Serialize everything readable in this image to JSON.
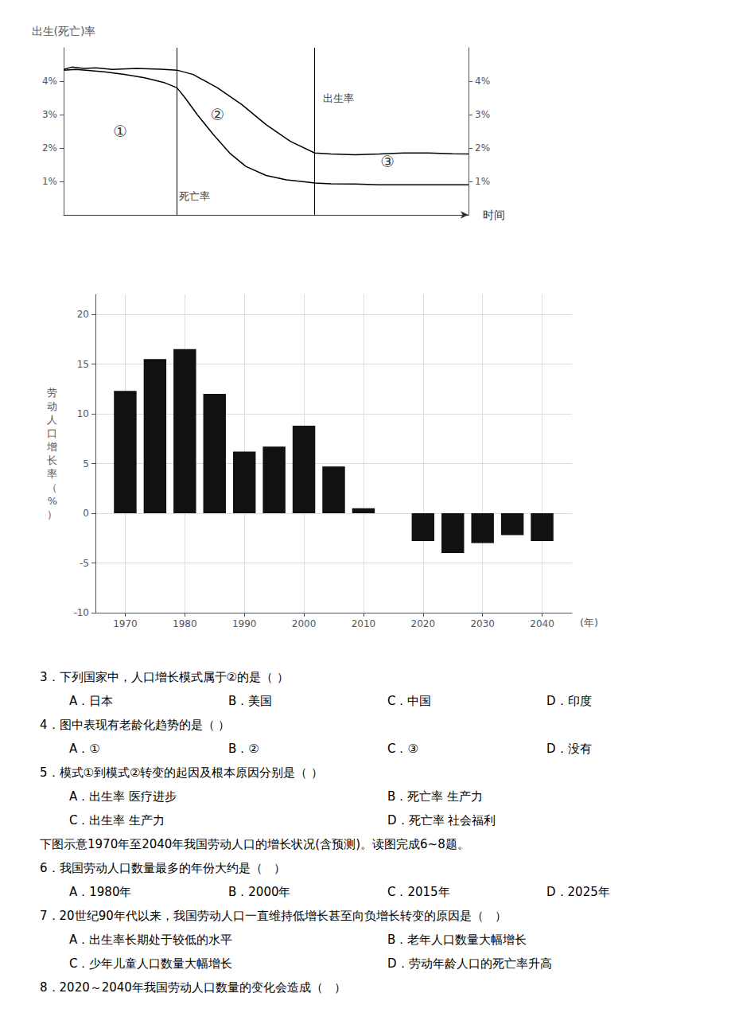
{
  "chart_data": [
    {
      "type": "line",
      "ylabel": "出生(死亡)率",
      "xlabel": "时间",
      "xlim": [
        0,
        10
      ],
      "ylim": [
        0,
        5.0
      ],
      "yticks": [
        {
          "value": 1,
          "label": "1%"
        },
        {
          "value": 2,
          "label": "2%"
        },
        {
          "value": 3,
          "label": "3%"
        },
        {
          "value": 4,
          "label": "4%"
        }
      ],
      "y2lim": [
        0,
        5.0
      ],
      "y2ticks": [
        {
          "value": 1,
          "label": "1%"
        },
        {
          "value": 2,
          "label": "2%"
        },
        {
          "value": 3,
          "label": "3%"
        },
        {
          "value": 4,
          "label": "4%"
        }
      ],
      "tick_labels": "y",
      "grid": false,
      "series": [
        {
          "color": "#000000",
          "x": [
            0,
            0.2,
            0.5,
            0.8,
            1.2,
            1.8,
            2.4,
            2.8,
            3.2,
            3.8,
            4.4,
            5.0,
            5.6,
            6.2,
            6.6,
            7.2,
            7.8,
            8.4,
            9.0,
            9.6,
            10.0
          ],
          "values": [
            4.35,
            4.42,
            4.38,
            4.4,
            4.35,
            4.38,
            4.36,
            4.33,
            4.2,
            3.8,
            3.3,
            2.7,
            2.2,
            1.85,
            1.82,
            1.8,
            1.82,
            1.85,
            1.85,
            1.83,
            1.82
          ]
        },
        {
          "color": "#000000",
          "x": [
            0,
            0.3,
            0.6,
            1.0,
            1.5,
            2.0,
            2.5,
            2.8,
            3.0,
            3.3,
            3.7,
            4.1,
            4.5,
            5.0,
            5.5,
            6.0,
            6.2,
            6.6,
            7.2,
            7.8,
            8.5,
            9.2,
            10.0
          ],
          "values": [
            4.33,
            4.35,
            4.32,
            4.28,
            4.2,
            4.1,
            3.95,
            3.8,
            3.5,
            3.0,
            2.4,
            1.85,
            1.45,
            1.18,
            1.05,
            0.98,
            0.95,
            0.93,
            0.92,
            0.9,
            0.9,
            0.9,
            0.9
          ]
        }
      ],
      "vlines": [
        2.8,
        6.2
      ],
      "annotations": [
        {
          "text": "①",
          "x": 1.4,
          "y": 2.5
        },
        {
          "text": "②",
          "x": 3.8,
          "y": 3.0
        },
        {
          "text": "③",
          "x": 8.0,
          "y": 1.6
        },
        {
          "text": "出生率",
          "x": 6.4,
          "y": 3.5
        },
        {
          "text": "死亡率",
          "x": 2.85,
          "y": 0.55
        }
      ]
    },
    {
      "type": "bar",
      "ylabel": "劳动人口增长率（%）",
      "xlabel": "(年)",
      "x": [
        1970,
        1975,
        1980,
        1985,
        1990,
        1995,
        2000,
        2005,
        2010,
        2015,
        2020,
        2025,
        2030,
        2035,
        2040
      ],
      "values": [
        12.3,
        15.5,
        16.5,
        12.0,
        6.2,
        6.7,
        8.8,
        4.7,
        0.5,
        0.0,
        -2.8,
        -4.0,
        -3.0,
        -2.2,
        -2.8
      ],
      "color": "#111111",
      "xlim": [
        1965,
        2045
      ],
      "xticks": [
        1970,
        1980,
        1990,
        2000,
        2010,
        2020,
        2030,
        2040
      ],
      "ylim": [
        -10,
        22
      ],
      "yticks": [
        -10,
        -5,
        0,
        5,
        10,
        15,
        20
      ],
      "grid": true
    }
  ],
  "questions": [
    [
      "3．下列国家中，人口增长模式属于②的是（ ）"
    ],
    [
      "A．日本",
      "B．美国",
      "C．中国",
      "D．印度"
    ],
    [
      "4．图中表现有老龄化趋势的是（ ）"
    ],
    [
      "A．①",
      "B．②",
      "C．③",
      "D．没有"
    ],
    [
      "5．模式①到模式②转变的起因及根本原因分别是（ ）"
    ],
    [
      "A．出生率 医疗进步",
      "B．死亡率 生产力"
    ],
    [
      "C．出生率 生产力",
      "D．死亡率 社会福利"
    ],
    [
      "下图示意1970年至2040年我国劳动人口的增长状况(含预测)。读图完成6~8题。"
    ],
    [
      "6．我国劳动人口数量最多的年份大约是（   ）"
    ],
    [
      "A．1980年",
      "B．2000年",
      "C．2015年",
      "D．2025年"
    ],
    [
      "7．20世纪90年代以来，我国劳动人口一直维持低增长甚至向负增长转变的原因是（   ）"
    ],
    [
      "A．出生率长期处于较低的水平",
      "B．老年人口数量大幅增长"
    ],
    [
      "C．少年儿童人口数量大幅增长",
      "D．劳动年龄人口的死亡率升高"
    ],
    [
      "8．2020～2040年我国劳动人口数量的变化会造成（   ）"
    ]
  ]
}
